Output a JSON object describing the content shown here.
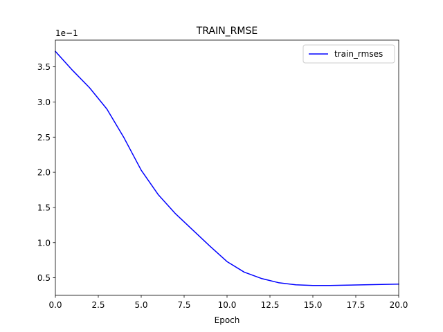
{
  "chart_data": {
    "type": "line",
    "title": "TRAIN_RMSE",
    "xlabel": "Epoch",
    "ylabel": "",
    "y_offset_text": "1e−1",
    "xlim": [
      0,
      20
    ],
    "ylim": [
      0.25,
      3.88
    ],
    "x_ticks": [
      0,
      2.5,
      5,
      7.5,
      10,
      12.5,
      15,
      17.5,
      20
    ],
    "x_tick_labels": [
      "0.0",
      "2.5",
      "5.0",
      "7.5",
      "10.0",
      "12.5",
      "15.0",
      "17.5",
      "20.0"
    ],
    "y_ticks": [
      0.5,
      1.0,
      1.5,
      2.0,
      2.5,
      3.0,
      3.5
    ],
    "y_tick_labels": [
      "0.5",
      "1.0",
      "1.5",
      "2.0",
      "2.5",
      "3.0",
      "3.5"
    ],
    "grid": false,
    "legend_position": "top-right",
    "series": [
      {
        "name": "train_rmses",
        "color": "#0000ff",
        "x": [
          0,
          1,
          2,
          3,
          4,
          5,
          6,
          7,
          8,
          9,
          10,
          11,
          12,
          13,
          14,
          15,
          16,
          17,
          18,
          19,
          20
        ],
        "y": [
          3.72,
          3.45,
          3.2,
          2.9,
          2.49,
          2.03,
          1.68,
          1.41,
          1.18,
          0.95,
          0.73,
          0.58,
          0.49,
          0.43,
          0.4,
          0.39,
          0.39,
          0.395,
          0.4,
          0.405,
          0.41
        ]
      }
    ]
  }
}
